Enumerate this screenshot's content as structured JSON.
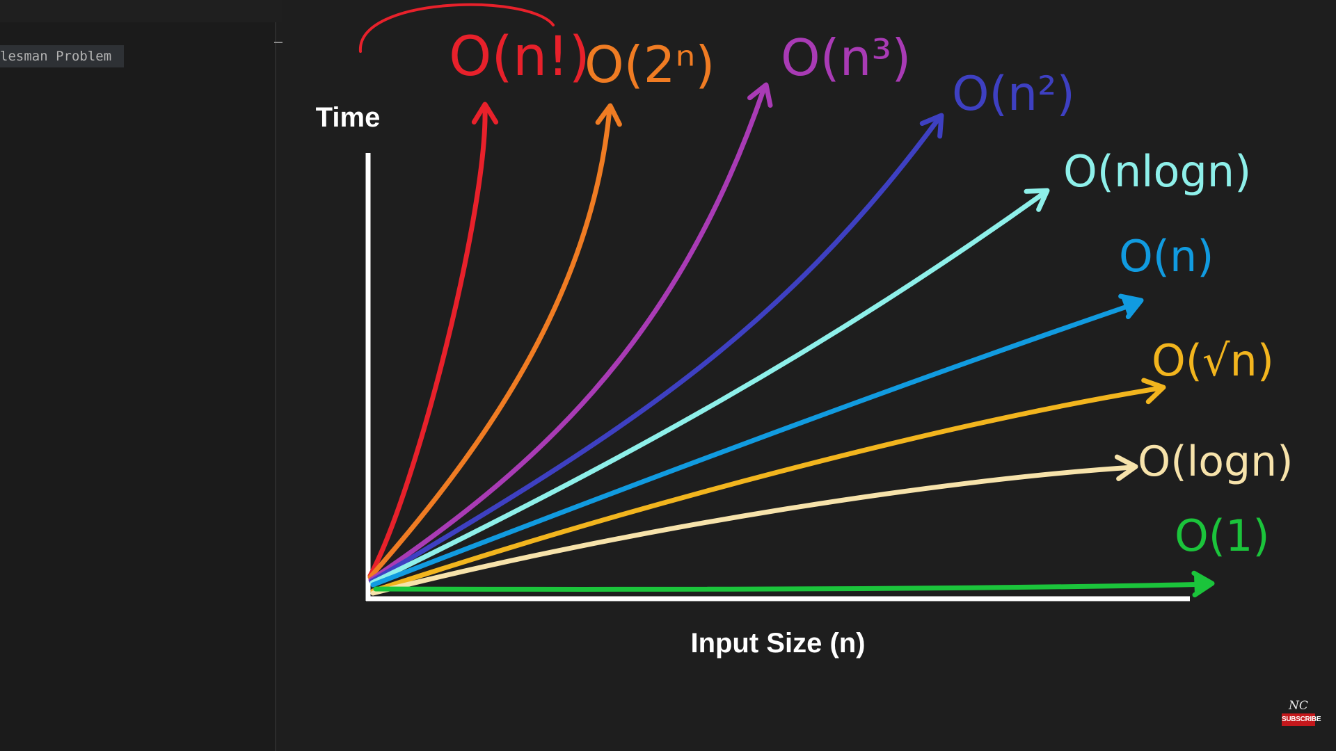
{
  "editor": {
    "tab_label": "lesman Problem"
  },
  "badge": {
    "logo": "NC",
    "subscribe_label": "SUBSCRIBE"
  },
  "chart_data": {
    "type": "line",
    "title": "",
    "xlabel": "Input Size (n)",
    "ylabel": "Time",
    "grid": false,
    "legend": "none",
    "series": [
      {
        "name": "O(n!)",
        "color": "#e8212b"
      },
      {
        "name": "O(2ⁿ)",
        "color": "#f07c23"
      },
      {
        "name": "O(n³)",
        "color": "#a93bb5"
      },
      {
        "name": "O(n²)",
        "color": "#3e40c2"
      },
      {
        "name": "O(nlogn)",
        "color": "#8ef0ea"
      },
      {
        "name": "O(n)",
        "color": "#119be0"
      },
      {
        "name": "O(√n)",
        "color": "#f2b51e"
      },
      {
        "name": "O(logn)",
        "color": "#f7e3ab"
      },
      {
        "name": "O(1)",
        "color": "#1bc43b"
      }
    ]
  }
}
